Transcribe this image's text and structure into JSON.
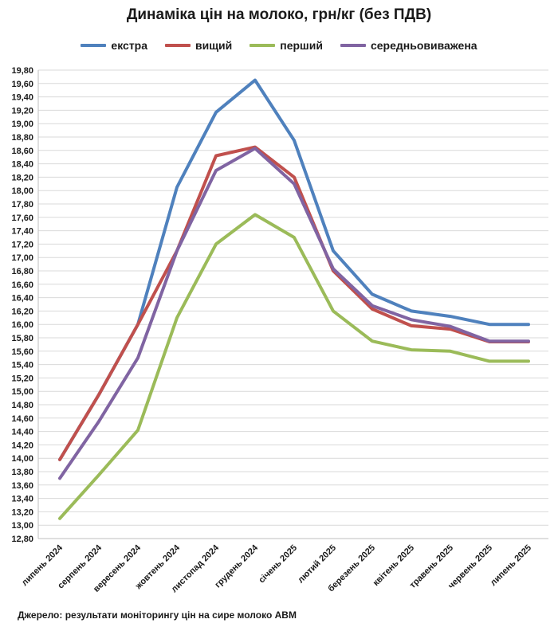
{
  "chart_data": {
    "type": "line",
    "title": "Динаміка цін на молоко, грн/кг (без ПДВ)",
    "categories": [
      "липень 2024",
      "серпень 2024",
      "вересень 2024",
      "жовтень 2024",
      "листопад 2024",
      "грудень 2024",
      "січень 2025",
      "лютий 2025",
      "березень 2025",
      "квітень 2025",
      "травень 2025",
      "червень 2025",
      "липень 2025"
    ],
    "series": [
      {
        "name": "екстра",
        "color": "#4f81bd",
        "values": [
          13.98,
          14.95,
          16.0,
          18.05,
          19.17,
          19.65,
          18.75,
          17.1,
          16.45,
          16.2,
          16.12,
          16.0,
          16.0
        ]
      },
      {
        "name": "вищий",
        "color": "#c0504d",
        "values": [
          13.98,
          14.95,
          16.0,
          17.1,
          18.52,
          18.65,
          18.2,
          16.8,
          16.23,
          15.98,
          15.93,
          15.74,
          15.74
        ]
      },
      {
        "name": "перший",
        "color": "#9bbb59",
        "values": [
          13.1,
          13.75,
          14.42,
          16.1,
          17.2,
          17.64,
          17.3,
          16.2,
          15.75,
          15.62,
          15.6,
          15.45,
          15.45
        ]
      },
      {
        "name": "середньовиважена",
        "color": "#8064a2",
        "values": [
          13.7,
          14.55,
          15.5,
          17.1,
          18.3,
          18.63,
          18.1,
          16.83,
          16.28,
          16.07,
          15.97,
          15.75,
          15.75
        ]
      }
    ],
    "ylim": [
      12.8,
      19.8
    ],
    "ytick_step": 0.2,
    "ytick_labels": [
      "12,80",
      "13,00",
      "13,20",
      "13,40",
      "13,60",
      "13,80",
      "14,00",
      "14,20",
      "14,40",
      "14,60",
      "14,80",
      "15,00",
      "15,20",
      "15,40",
      "15,60",
      "15,80",
      "16,00",
      "16,20",
      "16,40",
      "16,60",
      "16,80",
      "17,00",
      "17,20",
      "17,40",
      "17,60",
      "17,80",
      "18,00",
      "18,20",
      "18,40",
      "18,60",
      "18,80",
      "19,00",
      "19,20",
      "19,40",
      "19,60",
      "19,80"
    ],
    "grid": true,
    "legend_position": "top-center",
    "xlabel": "",
    "ylabel": ""
  },
  "source_note": "Джерело: результати  моніторингу  цін  на сире молоко  АВМ"
}
